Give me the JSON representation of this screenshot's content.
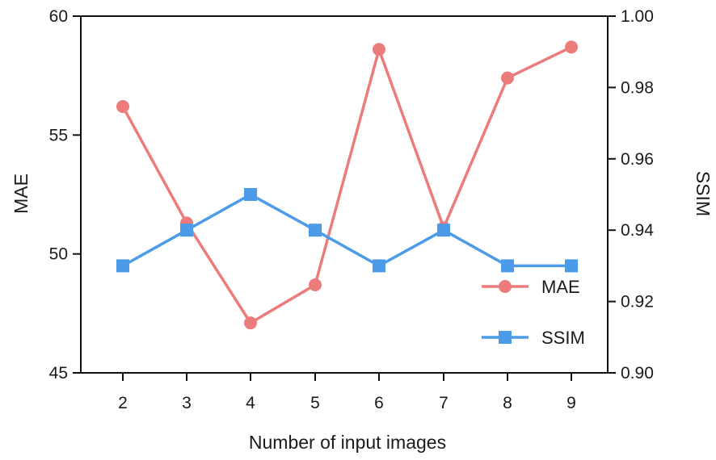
{
  "chart_data": {
    "type": "line",
    "title": "",
    "xlabel": "Number of input images",
    "ylabel_left": "MAE",
    "ylabel_right": "SSIM",
    "x": [
      2,
      3,
      4,
      5,
      6,
      7,
      8,
      9
    ],
    "x_ticks": [
      "2",
      "3",
      "4",
      "5",
      "6",
      "7",
      "8",
      "9"
    ],
    "ylim_left": [
      45,
      60
    ],
    "ylim_right": [
      0.9,
      1.0
    ],
    "y_ticks_left": [
      "45",
      "50",
      "55",
      "60"
    ],
    "y_ticks_right": [
      "0.90",
      "0.92",
      "0.94",
      "0.96",
      "0.98",
      "1.00"
    ],
    "series": [
      {
        "name": "MAE",
        "axis": "left",
        "marker": "circle",
        "color": "#ec7b7b",
        "values": [
          56.2,
          51.3,
          47.1,
          48.7,
          58.6,
          51.1,
          57.4,
          58.7
        ]
      },
      {
        "name": "SSIM",
        "axis": "right",
        "marker": "square",
        "color": "#4b9be8",
        "values": [
          0.93,
          0.94,
          0.95,
          0.94,
          0.93,
          0.94,
          0.93,
          0.93
        ]
      }
    ],
    "legend_position": "bottom-right",
    "grid": false
  }
}
